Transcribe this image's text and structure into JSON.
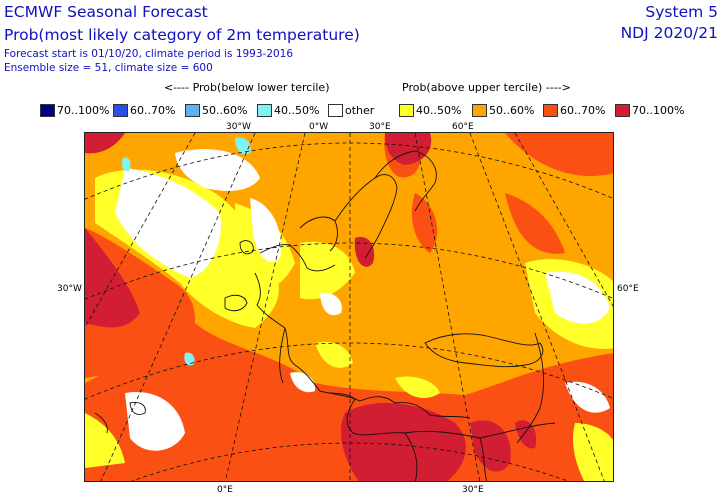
{
  "header": {
    "title": "ECMWF Seasonal Forecast",
    "subtitle": "Prob(most likely category of 2m temperature)",
    "forecast_line": "Forecast start is 01/10/20, climate period is 1993-2016",
    "ensemble_line": "Ensemble size = 51, climate size = 600",
    "system": "System 5",
    "period": "NDJ 2020/21"
  },
  "legend": {
    "below_heading": "<---- Prob(below lower tercile)",
    "above_heading": "Prob(above upper tercile) ---->",
    "items": [
      {
        "label": "70..100%",
        "color": "#00008c"
      },
      {
        "label": "60..70%",
        "color": "#2a4fe8"
      },
      {
        "label": "50..60%",
        "color": "#5ab4f0"
      },
      {
        "label": "40..50%",
        "color": "#7ff2f2"
      },
      {
        "label": "other",
        "color": "#ffffff"
      },
      {
        "label": "40..50%",
        "color": "#ffff2a"
      },
      {
        "label": "50..60%",
        "color": "#ffa500"
      },
      {
        "label": "60..70%",
        "color": "#fa5014"
      },
      {
        "label": "70..100%",
        "color": "#d21e32"
      }
    ]
  },
  "map": {
    "labels": {
      "top_30w": "30°W",
      "top_0e": "0°W",
      "top_30e": "30°E",
      "top_60e": "60°E",
      "left_30w": "30°W",
      "right_60e": "60°E",
      "bottom_0e": "0°E",
      "bottom_30e": "30°E"
    }
  }
}
